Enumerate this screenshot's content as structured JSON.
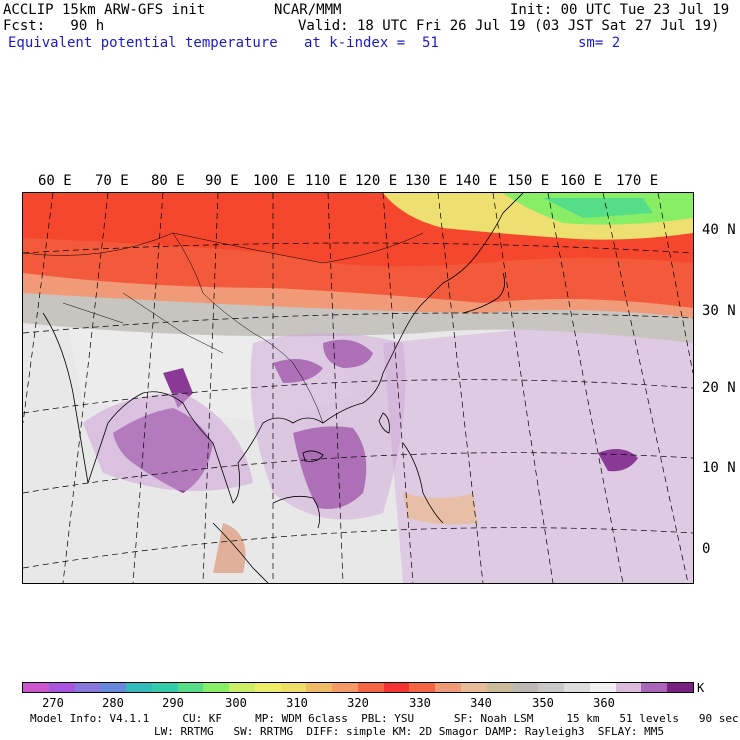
{
  "header": {
    "model": "ACCLIP 15km ARW-GFS init",
    "org": "NCAR/MMM",
    "init": "Init: 00 UTC Tue 23 Jul 19",
    "fcst": "Fcst:   90 h",
    "valid": "Valid: 18 UTC Fri 26 Jul 19 (03 JST Sat 27 Jul 19)",
    "field": "Equivalent potential temperature",
    "level": "at k-index =  51",
    "smooth": "sm= 2"
  },
  "map": {
    "lon_labels": [
      "60 E",
      "70 E",
      "80 E",
      "90 E",
      "100 E",
      "110 E",
      "120 E",
      "130 E",
      "140 E",
      "150 E",
      "160 E",
      "170 E"
    ],
    "lat_labels": [
      "40 N",
      "30 N",
      "20 N",
      "10 N",
      "0"
    ]
  },
  "colorbar": {
    "colors": [
      "#cc55cc",
      "#aa55dd",
      "#8877dd",
      "#6688dd",
      "#33bbbb",
      "#33ccaa",
      "#55dd88",
      "#88ee66",
      "#ccee66",
      "#eeee66",
      "#eedd66",
      "#f2bb66",
      "#f59966",
      "#f56644",
      "#f53333",
      "#f26644",
      "#f09977",
      "#e8bb99",
      "#ccbb99",
      "#bbb8b3",
      "#c8c8c8",
      "#dddddd",
      "#f0f0f0",
      "#ddbbdd",
      "#aa66bb",
      "#7a2080"
    ],
    "tick_labels": [
      "270",
      "280",
      "290",
      "300",
      "310",
      "320",
      "330",
      "340",
      "350",
      "360"
    ],
    "unit": "K"
  },
  "footer": {
    "line1": "Model Info: V4.1.1     CU: KF     MP: WDM 6class  PBL: YSU      SF: Noah LSM     15 km   51 levels   90 sec",
    "line2": "LW: RRTMG   SW: RRTMG  DIFF: simple KM: 2D Smagor DAMP: Rayleigh3  SFLAY: MM5"
  }
}
